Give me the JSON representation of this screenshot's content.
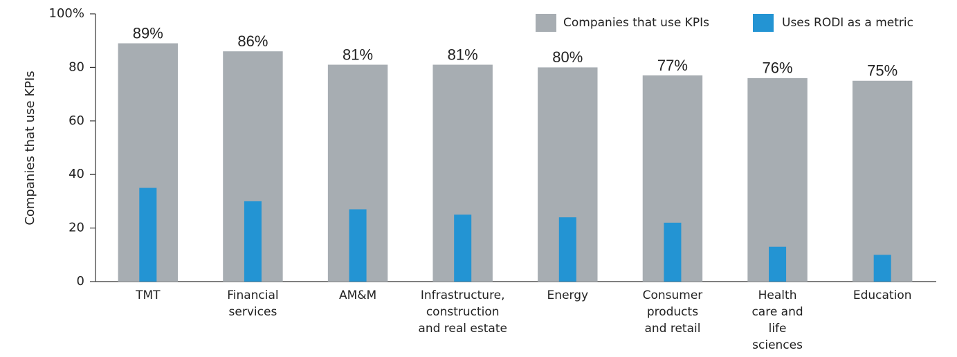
{
  "chart_data": {
    "type": "bar",
    "y_label": "Companies that use KPIs",
    "categories": [
      "TMT",
      "Financial\nservices",
      "AM&M",
      "Infrastructure,\nconstruction\nand real estate",
      "Energy",
      "Consumer\nproducts\nand retail",
      "Health\ncare and\nlife\nsciences",
      "Education"
    ],
    "series": [
      {
        "name": "Companies that use KPIs",
        "color": "#a7adb2",
        "values": [
          89,
          86,
          81,
          81,
          80,
          77,
          76,
          75
        ],
        "value_labels": [
          "89%",
          "86%",
          "81%",
          "81%",
          "80%",
          "77%",
          "76%",
          "75%"
        ]
      },
      {
        "name": "Uses RODI as a metric",
        "color": "#2394d3",
        "values": [
          35,
          30,
          27,
          25,
          24,
          22,
          13,
          10
        ]
      }
    ],
    "ylim": [
      0,
      100
    ],
    "yticks": [
      0,
      20,
      40,
      60,
      80,
      {
        "value": 100,
        "label": "100%"
      }
    ],
    "legend": "top-right"
  }
}
